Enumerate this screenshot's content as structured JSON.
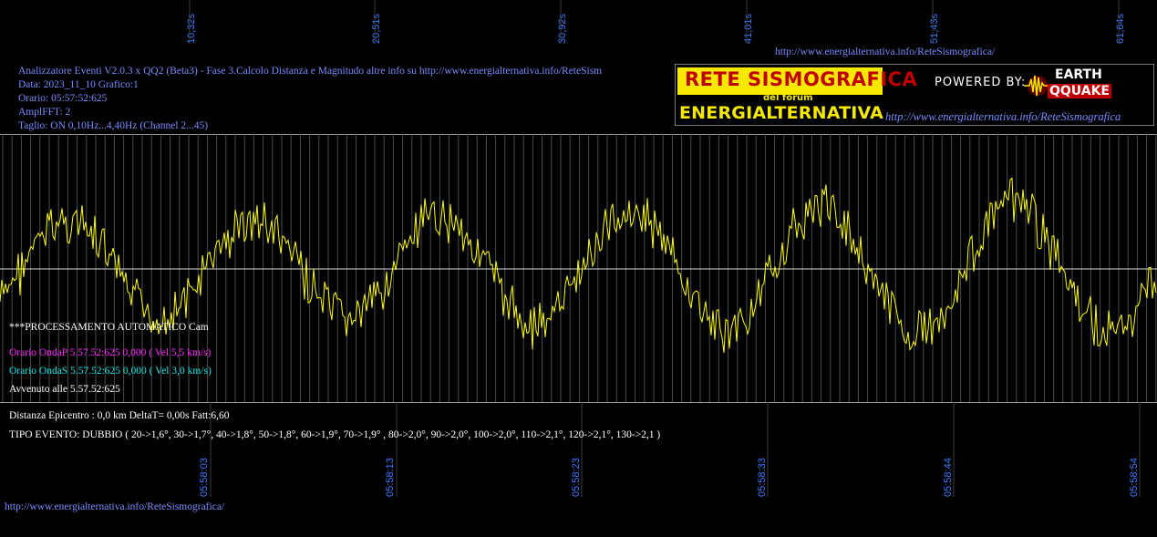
{
  "top_time_ticks": [
    "10,32s",
    "20,51s",
    "30,92s",
    "41,01s",
    "51,43s",
    "61,64s"
  ],
  "bottom_time_ticks": [
    "05:58:03",
    "05:58:13",
    "05:58:23",
    "05:58:33",
    "05:58:44",
    "05:58:54"
  ],
  "header": {
    "url_top": "http://www.energialternativa.info/ReteSismografica/",
    "title": "Analizzatore Eventi V2.0.3 x QQ2 (Beta3) - Fase 3.Calcolo Distanza e Magnitudo altre info su http://www.energialternativa.info/ReteSism",
    "data": "Data: 2023_11_10 Grafico:1",
    "orario": "Orario: 05:57:52:625",
    "amplfft": "AmplFFT: 2",
    "taglio": "Taglio: ON 0,10Hz...4,40Hz       (Channel 2...45)"
  },
  "logo": {
    "rete": "RETE SISMOGRAFICA",
    "del_forum": "del forum",
    "energia": "ENERGIALTERNATIVA",
    "powered_by": "POWERED BY:",
    "earth": "EARTH",
    "qquake": "QQUAKE",
    "url": "http://www.energialternativa.info/ReteSismografica"
  },
  "overlay": {
    "processamento": "***PROCESSAMENTO AUTOMATICO Cam",
    "onda_p": "Orario OndaP 5.57.52:625  0,000 ( Vel 5,5 km/s)",
    "onda_s": "Orario OndaS 5.57.52:625  0,000 ( Vel 3,0 km/s)",
    "avvenuto": "Avvenuto alle 5.57.52:625"
  },
  "results": {
    "distanza": "Distanza Epicentro : 0,0 km DeltaT= 0,00s  Fatt:6,60",
    "tipo_evento": "TIPO EVENTO: DUBBIO ( 20->1,6°, 30->1,7°, 40->1,8°, 50->1,8°, 60->1,9°, 70->1,9° , 80->2,0°, 90->2,0°, 100->2,0°, 110->2,1°, 120->2,1°, 130->2,1 )"
  },
  "footer": {
    "url": "http://www.energialternativa.info/ReteSismografica/"
  },
  "colors": {
    "background": "#000000",
    "trace": "#ffff00",
    "grid": "#9a9a9a",
    "text_blue": "#7b8cff",
    "onda_p": "#ff2bff",
    "onda_s": "#19e6e6"
  }
}
